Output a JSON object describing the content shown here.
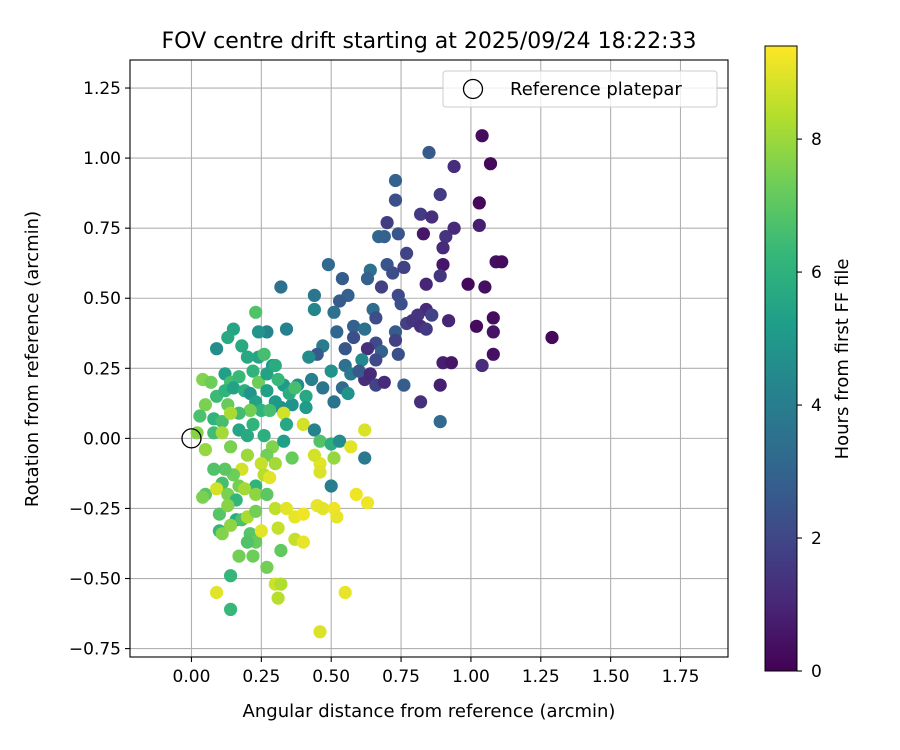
{
  "chart_data": {
    "type": "scatter",
    "title": "FOV centre drift starting at 2025/09/24 18:22:33",
    "xlabel": "Angular distance from reference (arcmin)",
    "ylabel": "Rotation from reference (arcmin)",
    "xlim": [
      -0.22,
      1.92
    ],
    "ylim": [
      -0.78,
      1.35
    ],
    "xticks": [
      0.0,
      0.25,
      0.5,
      0.75,
      1.0,
      1.25,
      1.5,
      1.75
    ],
    "yticks": [
      -0.75,
      -0.5,
      -0.25,
      0.0,
      0.25,
      0.5,
      0.75,
      1.0,
      1.25
    ],
    "xtick_labels": [
      "0.00",
      "0.25",
      "0.50",
      "0.75",
      "1.00",
      "1.25",
      "1.50",
      "1.75"
    ],
    "ytick_labels": [
      "−0.75",
      "−0.50",
      "−0.25",
      "0.00",
      "0.25",
      "0.50",
      "0.75",
      "1.00",
      "1.25"
    ],
    "grid": true,
    "legend": {
      "position": "top-right",
      "entries": [
        {
          "label": "Reference platepar",
          "marker": "open-circle"
        }
      ]
    },
    "reference_point": {
      "x": 0.0,
      "y": 0.0
    },
    "colorbar": {
      "label": "Hours from first FF file",
      "range": [
        0,
        9.4
      ],
      "ticks": [
        0,
        2,
        4,
        6,
        8
      ],
      "tick_labels": [
        "0",
        "2",
        "4",
        "6",
        "8"
      ],
      "colormap": "viridis"
    },
    "series": [
      {
        "name": "FOV centre drift",
        "columns": [
          "x",
          "y",
          "hours"
        ],
        "points": [
          [
            1.04,
            1.08,
            0.3
          ],
          [
            1.07,
            0.98,
            0.2
          ],
          [
            0.85,
            1.02,
            2.6
          ],
          [
            0.94,
            0.97,
            1.2
          ],
          [
            1.03,
            0.84,
            0.2
          ],
          [
            0.73,
            0.92,
            2.9
          ],
          [
            0.89,
            0.87,
            1.7
          ],
          [
            0.73,
            0.85,
            2.3
          ],
          [
            0.82,
            0.8,
            1.6
          ],
          [
            0.86,
            0.79,
            1.3
          ],
          [
            1.03,
            0.76,
            0.8
          ],
          [
            0.94,
            0.75,
            1.1
          ],
          [
            0.7,
            0.77,
            1.7
          ],
          [
            0.74,
            0.73,
            2.5
          ],
          [
            0.91,
            0.72,
            1.4
          ],
          [
            0.83,
            0.73,
            0.6
          ],
          [
            0.67,
            0.72,
            3.1
          ],
          [
            0.69,
            0.72,
            2.9
          ],
          [
            0.9,
            0.68,
            1.1
          ],
          [
            0.77,
            0.66,
            1.9
          ],
          [
            0.7,
            0.62,
            2.5
          ],
          [
            0.76,
            0.61,
            1.8
          ],
          [
            0.9,
            0.62,
            0.6
          ],
          [
            0.89,
            0.58,
            1.5
          ],
          [
            1.09,
            0.63,
            0.4
          ],
          [
            1.11,
            0.63,
            0.3
          ],
          [
            0.64,
            0.6,
            3.5
          ],
          [
            0.63,
            0.57,
            2.9
          ],
          [
            0.72,
            0.59,
            2.2
          ],
          [
            0.49,
            0.62,
            3.2
          ],
          [
            0.54,
            0.57,
            2.7
          ],
          [
            0.99,
            0.55,
            0.2
          ],
          [
            1.05,
            0.54,
            0.4
          ],
          [
            0.84,
            0.55,
            1.0
          ],
          [
            0.68,
            0.54,
            1.8
          ],
          [
            0.56,
            0.51,
            2.9
          ],
          [
            0.32,
            0.54,
            3.5
          ],
          [
            0.44,
            0.51,
            3.7
          ],
          [
            0.53,
            0.49,
            2.7
          ],
          [
            0.74,
            0.51,
            2.1
          ],
          [
            0.75,
            0.48,
            2.3
          ],
          [
            0.65,
            0.46,
            3.3
          ],
          [
            0.84,
            0.46,
            1.1
          ],
          [
            0.81,
            0.44,
            1.4
          ],
          [
            0.86,
            0.44,
            1.9
          ],
          [
            0.44,
            0.46,
            4.3
          ],
          [
            0.51,
            0.45,
            3.5
          ],
          [
            0.66,
            0.43,
            2.2
          ],
          [
            0.77,
            0.41,
            1.8
          ],
          [
            0.79,
            0.42,
            1.4
          ],
          [
            0.82,
            0.4,
            1.2
          ],
          [
            0.92,
            0.42,
            1.0
          ],
          [
            1.02,
            0.4,
            0.3
          ],
          [
            1.08,
            0.43,
            0.3
          ],
          [
            1.08,
            0.38,
            0.5
          ],
          [
            0.73,
            0.38,
            2.7
          ],
          [
            0.84,
            0.39,
            1.6
          ],
          [
            0.58,
            0.4,
            2.9
          ],
          [
            0.62,
            0.39,
            3.5
          ],
          [
            0.52,
            0.38,
            3.1
          ],
          [
            0.58,
            0.36,
            2.3
          ],
          [
            0.73,
            0.35,
            1.8
          ],
          [
            0.66,
            0.34,
            2.1
          ],
          [
            0.34,
            0.39,
            4.1
          ],
          [
            0.27,
            0.38,
            4.3
          ],
          [
            0.24,
            0.38,
            4.9
          ],
          [
            0.47,
            0.33,
            3.9
          ],
          [
            0.45,
            0.3,
            2.6
          ],
          [
            0.55,
            0.32,
            2.5
          ],
          [
            0.63,
            0.32,
            1.3
          ],
          [
            0.68,
            0.31,
            2.9
          ],
          [
            0.74,
            0.3,
            2.3
          ],
          [
            0.9,
            0.27,
            0.8
          ],
          [
            0.93,
            0.27,
            0.6
          ],
          [
            1.04,
            0.26,
            1.2
          ],
          [
            1.08,
            0.3,
            0.4
          ],
          [
            1.29,
            0.36,
            0.2
          ],
          [
            0.61,
            0.28,
            4.4
          ],
          [
            0.66,
            0.28,
            2.1
          ],
          [
            0.42,
            0.29,
            4.6
          ],
          [
            0.55,
            0.26,
            3.5
          ],
          [
            0.57,
            0.23,
            3.8
          ],
          [
            0.62,
            0.21,
            1.2
          ],
          [
            0.6,
            0.24,
            2.6
          ],
          [
            0.64,
            0.23,
            1.1
          ],
          [
            0.66,
            0.19,
            1.9
          ],
          [
            0.69,
            0.2,
            1.1
          ],
          [
            0.76,
            0.19,
            2.8
          ],
          [
            0.89,
            0.19,
            0.8
          ],
          [
            0.82,
            0.13,
            1.3
          ],
          [
            0.89,
            0.06,
            3.2
          ],
          [
            0.24,
            0.29,
            5.5
          ],
          [
            0.29,
            0.26,
            5.0
          ],
          [
            0.33,
            0.19,
            5.1
          ],
          [
            0.38,
            0.19,
            4.6
          ],
          [
            0.43,
            0.21,
            4.1
          ],
          [
            0.5,
            0.24,
            4.8
          ],
          [
            0.47,
            0.18,
            3.7
          ],
          [
            0.54,
            0.18,
            3.3
          ],
          [
            0.41,
            0.15,
            5.6
          ],
          [
            0.36,
            0.12,
            4.8
          ],
          [
            0.32,
            0.11,
            4.7
          ],
          [
            0.41,
            0.11,
            5.1
          ],
          [
            0.51,
            0.13,
            3.6
          ],
          [
            0.56,
            0.16,
            4.8
          ],
          [
            0.15,
            0.39,
            5.5
          ],
          [
            0.13,
            0.36,
            5.7
          ],
          [
            0.09,
            0.32,
            4.6
          ],
          [
            0.23,
            0.45,
            6.8
          ],
          [
            0.18,
            0.33,
            5.7
          ],
          [
            0.2,
            0.29,
            5.6
          ],
          [
            0.26,
            0.3,
            6.6
          ],
          [
            0.04,
            0.21,
            7.6
          ],
          [
            0.07,
            0.2,
            7.3
          ],
          [
            0.12,
            0.23,
            5.3
          ],
          [
            0.14,
            0.2,
            6.6
          ],
          [
            0.17,
            0.22,
            6.3
          ],
          [
            0.22,
            0.24,
            6.1
          ],
          [
            0.24,
            0.2,
            7.3
          ],
          [
            0.27,
            0.23,
            5.4
          ],
          [
            0.3,
            0.26,
            5.8
          ],
          [
            0.31,
            0.21,
            6.3
          ],
          [
            0.35,
            0.16,
            5.8
          ],
          [
            0.37,
            0.18,
            6.6
          ],
          [
            0.09,
            0.15,
            6.4
          ],
          [
            0.12,
            0.17,
            6.1
          ],
          [
            0.15,
            0.18,
            5.4
          ],
          [
            0.19,
            0.17,
            5.9
          ],
          [
            0.21,
            0.16,
            4.9
          ],
          [
            0.23,
            0.13,
            5.4
          ],
          [
            0.27,
            0.17,
            5.3
          ],
          [
            0.3,
            0.13,
            5.0
          ],
          [
            0.25,
            0.1,
            6.1
          ],
          [
            0.28,
            0.1,
            6.6
          ],
          [
            0.33,
            0.09,
            8.8
          ],
          [
            0.21,
            0.1,
            7.4
          ],
          [
            0.17,
            0.09,
            6.5
          ],
          [
            0.13,
            0.12,
            7.2
          ],
          [
            0.05,
            0.12,
            7.5
          ],
          [
            0.03,
            0.08,
            6.7
          ],
          [
            0.08,
            0.07,
            6.1
          ],
          [
            0.11,
            0.06,
            6.6
          ],
          [
            0.14,
            0.09,
            8.2
          ],
          [
            0.02,
            0.02,
            7.7
          ],
          [
            0.05,
            -0.04,
            7.9
          ],
          [
            0.08,
            0.02,
            6.5
          ],
          [
            0.11,
            0.02,
            8.1
          ],
          [
            0.14,
            -0.03,
            7.5
          ],
          [
            0.17,
            0.03,
            5.5
          ],
          [
            0.2,
            0.01,
            5.7
          ],
          [
            0.22,
            0.05,
            6.1
          ],
          [
            0.26,
            0.01,
            5.9
          ],
          [
            0.29,
            -0.03,
            7.6
          ],
          [
            0.33,
            -0.01,
            5.3
          ],
          [
            0.34,
            0.05,
            5.6
          ],
          [
            0.4,
            0.05,
            8.8
          ],
          [
            0.44,
            0.03,
            4.2
          ],
          [
            0.46,
            -0.01,
            6.8
          ],
          [
            0.5,
            -0.02,
            5.9
          ],
          [
            0.53,
            -0.01,
            4.6
          ],
          [
            0.57,
            -0.03,
            9.0
          ],
          [
            0.62,
            0.03,
            8.9
          ],
          [
            0.62,
            -0.07,
            3.8
          ],
          [
            0.51,
            -0.07,
            7.9
          ],
          [
            0.46,
            -0.09,
            9.0
          ],
          [
            0.44,
            -0.06,
            8.8
          ],
          [
            0.36,
            -0.07,
            7.2
          ],
          [
            0.27,
            -0.06,
            7.4
          ],
          [
            0.2,
            -0.06,
            8.0
          ],
          [
            0.18,
            -0.11,
            8.8
          ],
          [
            0.15,
            -0.13,
            7.3
          ],
          [
            0.12,
            -0.11,
            7.0
          ],
          [
            0.08,
            -0.11,
            6.8
          ],
          [
            0.25,
            -0.09,
            8.6
          ],
          [
            0.3,
            -0.09,
            8.1
          ],
          [
            0.46,
            -0.12,
            8.9
          ],
          [
            0.5,
            -0.17,
            4.0
          ],
          [
            0.11,
            -0.16,
            6.6
          ],
          [
            0.17,
            -0.17,
            7.4
          ],
          [
            0.23,
            -0.17,
            6.1
          ],
          [
            0.26,
            -0.13,
            8.4
          ],
          [
            0.28,
            -0.14,
            9.0
          ],
          [
            0.05,
            -0.2,
            6.9
          ],
          [
            0.04,
            -0.21,
            7.5
          ],
          [
            0.09,
            -0.18,
            8.8
          ],
          [
            0.13,
            -0.2,
            7.5
          ],
          [
            0.16,
            -0.22,
            6.2
          ],
          [
            0.19,
            -0.18,
            8.1
          ],
          [
            0.23,
            -0.2,
            7.8
          ],
          [
            0.27,
            -0.2,
            7.0
          ],
          [
            0.3,
            -0.25,
            8.5
          ],
          [
            0.34,
            -0.25,
            9.0
          ],
          [
            0.37,
            -0.28,
            9.1
          ],
          [
            0.4,
            -0.27,
            9.2
          ],
          [
            0.45,
            -0.24,
            9.1
          ],
          [
            0.47,
            -0.25,
            9.0
          ],
          [
            0.51,
            -0.25,
            9.2
          ],
          [
            0.52,
            -0.28,
            9.1
          ],
          [
            0.59,
            -0.2,
            9.2
          ],
          [
            0.63,
            -0.23,
            9.2
          ],
          [
            0.1,
            -0.27,
            6.9
          ],
          [
            0.13,
            -0.24,
            7.7
          ],
          [
            0.16,
            -0.29,
            5.8
          ],
          [
            0.18,
            -0.29,
            6.7
          ],
          [
            0.2,
            -0.28,
            8.2
          ],
          [
            0.23,
            -0.26,
            7.4
          ],
          [
            0.1,
            -0.33,
            6.2
          ],
          [
            0.11,
            -0.34,
            7.6
          ],
          [
            0.14,
            -0.31,
            7.8
          ],
          [
            0.21,
            -0.34,
            6.9
          ],
          [
            0.23,
            -0.37,
            7.2
          ],
          [
            0.25,
            -0.33,
            9.0
          ],
          [
            0.31,
            -0.32,
            8.6
          ],
          [
            0.37,
            -0.36,
            8.6
          ],
          [
            0.4,
            -0.37,
            9.1
          ],
          [
            0.17,
            -0.42,
            7.4
          ],
          [
            0.2,
            -0.37,
            6.8
          ],
          [
            0.22,
            -0.42,
            7.3
          ],
          [
            0.27,
            -0.46,
            7.4
          ],
          [
            0.32,
            -0.4,
            7.1
          ],
          [
            0.14,
            -0.49,
            6.2
          ],
          [
            0.3,
            -0.52,
            8.7
          ],
          [
            0.32,
            -0.52,
            8.3
          ],
          [
            0.31,
            -0.57,
            8.4
          ],
          [
            0.09,
            -0.55,
            9.0
          ],
          [
            0.14,
            -0.61,
            6.3
          ],
          [
            0.55,
            -0.55,
            9.1
          ],
          [
            0.46,
            -0.69,
            8.9
          ]
        ]
      }
    ]
  }
}
